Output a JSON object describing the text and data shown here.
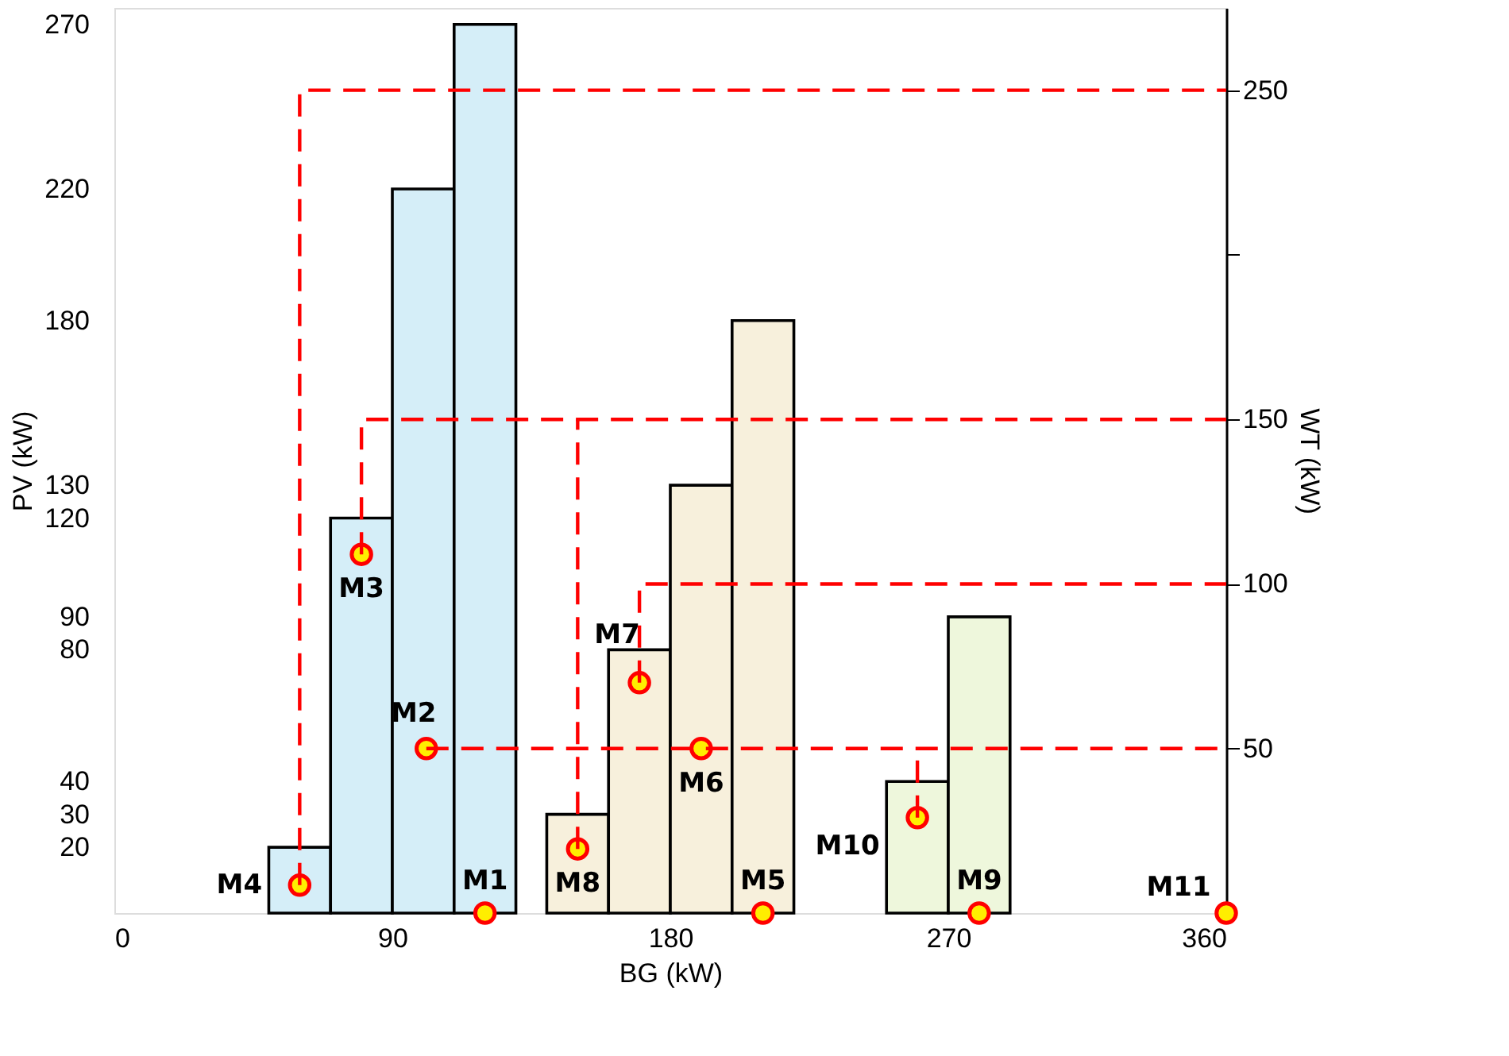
{
  "chart_data": {
    "type": "bar",
    "xlabel": "BG (kW)",
    "ylabel": "PV (kW)",
    "y2label": "WT (kW)",
    "xlim": [
      0,
      360
    ],
    "xticks": [
      0,
      90,
      180,
      270,
      360
    ],
    "ylim": [
      0,
      275
    ],
    "yticks": [
      20,
      30,
      40,
      80,
      90,
      120,
      130,
      180,
      220,
      270
    ],
    "y2lim": [
      0,
      275
    ],
    "y2ticks": [
      50,
      100,
      150,
      {
        "value": 200,
        "label": null
      },
      250
    ],
    "grid": false,
    "legend": false,
    "series": [
      {
        "type": "bar",
        "color": "#d5eef8",
        "x": [
          60,
          80,
          100,
          120
        ],
        "values": [
          20,
          120,
          220,
          270
        ]
      },
      {
        "type": "bar",
        "color": "#f7f0dc",
        "x": [
          150,
          170,
          190,
          210
        ],
        "values": [
          30,
          80,
          130,
          180
        ]
      },
      {
        "type": "bar",
        "color": "#eef7dc",
        "x": [
          260,
          280
        ],
        "values": [
          40,
          90
        ]
      },
      {
        "type": "line",
        "axis": "y2",
        "color": "#ff0000",
        "line_style": "dashed",
        "marker": "none",
        "x": [
          60,
          60,
          360
        ],
        "values": [
          8.5,
          250,
          250
        ]
      },
      {
        "type": "line",
        "axis": "y2",
        "color": "#ff0000",
        "line_style": "dashed",
        "marker": "none",
        "x": [
          80,
          80,
          360
        ],
        "values": [
          109,
          150,
          150
        ]
      },
      {
        "type": "line",
        "axis": "y2",
        "color": "#ff0000",
        "line_style": "dashed",
        "marker": "none",
        "x": [
          150,
          150
        ],
        "values": [
          19.5,
          150
        ]
      },
      {
        "type": "line",
        "axis": "y2",
        "color": "#ff0000",
        "line_style": "dashed",
        "marker": "none",
        "x": [
          101,
          360
        ],
        "values": [
          50,
          50
        ]
      },
      {
        "type": "line",
        "axis": "y2",
        "color": "#ff0000",
        "line_style": "dashed",
        "marker": "none",
        "x": [
          170,
          170,
          360
        ],
        "values": [
          70,
          100,
          100
        ]
      },
      {
        "type": "line",
        "axis": "y2",
        "color": "#ff0000",
        "line_style": "dashed",
        "marker": "none",
        "x": [
          260,
          260
        ],
        "values": [
          29,
          50
        ]
      },
      {
        "type": "scatter",
        "color": "#ffee00",
        "marker": "circle",
        "x": [
          120,
          101,
          80,
          60,
          210,
          190,
          170,
          150,
          280,
          260,
          360
        ],
        "values": [
          0,
          50,
          109,
          8.5,
          0,
          50,
          70,
          19.5,
          0,
          29,
          0
        ]
      }
    ],
    "annotations": [
      {
        "text": "M1",
        "x": 120,
        "y": 0
      },
      {
        "text": "M2",
        "x": 101,
        "y": 50
      },
      {
        "text": "M3",
        "x": 80,
        "y": 109
      },
      {
        "text": "M4",
        "x": 60,
        "y": 8.5
      },
      {
        "text": "M5",
        "x": 210,
        "y": 0
      },
      {
        "text": "M6",
        "x": 190,
        "y": 50
      },
      {
        "text": "M7",
        "x": 170,
        "y": 70
      },
      {
        "text": "M8",
        "x": 150,
        "y": 19.5
      },
      {
        "text": "M9",
        "x": 280,
        "y": 0
      },
      {
        "text": "M10",
        "x": 260,
        "y": 29
      },
      {
        "text": "M11",
        "x": 360,
        "y": 0
      }
    ]
  }
}
